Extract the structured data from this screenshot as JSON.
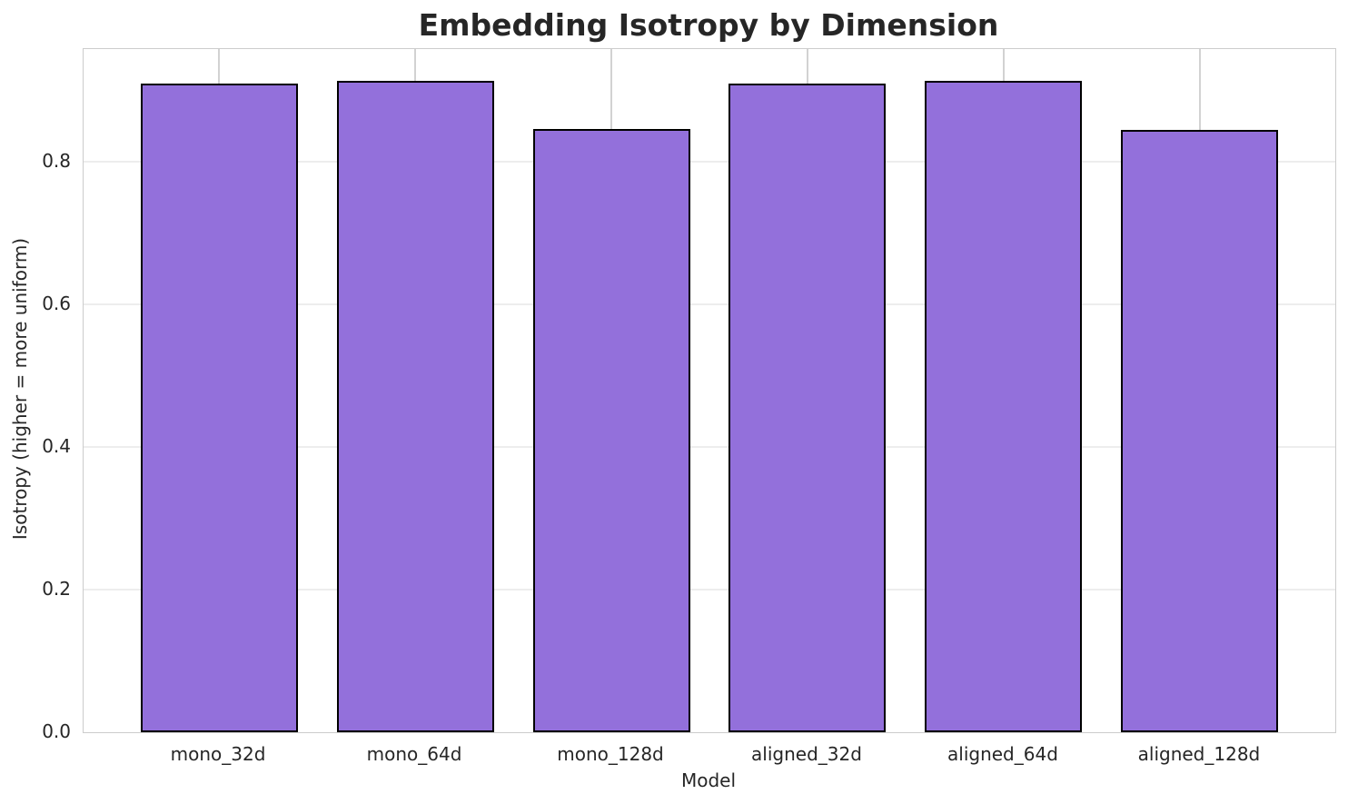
{
  "chart_data": {
    "type": "bar",
    "title": "Embedding Isotropy by Dimension",
    "xlabel": "Model",
    "ylabel": "Isotropy (higher = more uniform)",
    "categories": [
      "mono_32d",
      "mono_64d",
      "mono_128d",
      "aligned_32d",
      "aligned_64d",
      "aligned_128d"
    ],
    "values": [
      0.91,
      0.913,
      0.846,
      0.909,
      0.913,
      0.845
    ],
    "ylim": [
      0,
      0.958
    ],
    "xlim": [
      -0.69,
      5.69
    ],
    "yticks": [
      0.0,
      0.2,
      0.4,
      0.6,
      0.8
    ],
    "ytick_labels": [
      "0.0",
      "0.2",
      "0.4",
      "0.6",
      "0.8"
    ],
    "grid": true,
    "legend": "none",
    "bar_width_units": 0.8,
    "colors": {
      "bar_fill": "#9370DB",
      "bar_edge": "#000000",
      "spine": "#cccccc",
      "hgrid": "#ededed",
      "vgrid": "#d2d2d2",
      "text": "#262626"
    }
  }
}
